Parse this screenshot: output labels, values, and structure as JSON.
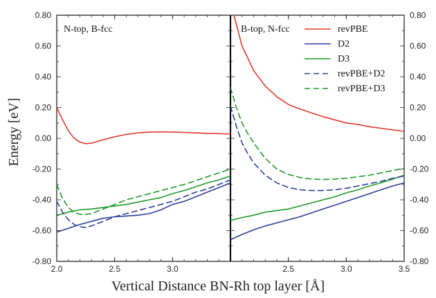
{
  "chart_data": {
    "type": "line",
    "ylabel": "Energy [eV]",
    "xlabel": "Vertical Distance BN-Rh top layer [Å]",
    "ylim": [
      -0.8,
      0.8
    ],
    "yticks": [
      "0.80",
      "0.60",
      "0.40",
      "0.20",
      "0.00",
      "-0.20",
      "-0.40",
      "-0.60",
      "-0.80"
    ],
    "yticks_right": [
      "0.80",
      "0.60",
      "0.40",
      "0.20",
      "0.00",
      "-0.20",
      "-0.40",
      "-0.60",
      "-0.80"
    ],
    "legend": {
      "placement": "top-right of right panel",
      "entries": [
        {
          "name": "revPBE",
          "color": "#e03a2f",
          "dash": "solid"
        },
        {
          "name": "D2",
          "color": "#2a3f99",
          "dash": "solid"
        },
        {
          "name": "D3",
          "color": "#1f9a2a",
          "dash": "solid"
        },
        {
          "name": "revPBE+D2",
          "color": "#2a3f99",
          "dash": "dashed"
        },
        {
          "name": "revPBE+D3",
          "color": "#1f9a2a",
          "dash": "dashed"
        }
      ]
    },
    "panels": [
      {
        "label": "N-top, B-fcc",
        "xlim": [
          2.0,
          3.5
        ],
        "xticks": [
          "2.0",
          "2.5",
          "3.0"
        ],
        "series": [
          {
            "name": "revPBE",
            "color": "#e03a2f",
            "dash": "solid",
            "x": [
              2.0,
              2.05,
              2.1,
              2.15,
              2.2,
              2.25,
              2.3,
              2.4,
              2.5,
              2.6,
              2.7,
              2.8,
              2.9,
              3.0,
              3.1,
              3.2,
              3.3,
              3.4,
              3.5
            ],
            "y": [
              0.2,
              0.12,
              0.05,
              0.0,
              -0.025,
              -0.035,
              -0.032,
              -0.01,
              0.01,
              0.025,
              0.035,
              0.04,
              0.042,
              0.04,
              0.038,
              0.035,
              0.032,
              0.03,
              0.028
            ]
          },
          {
            "name": "D2",
            "color": "#2a3f99",
            "dash": "solid",
            "x": [
              2.0,
              2.1,
              2.2,
              2.3,
              2.4,
              2.5,
              2.6,
              2.7,
              2.8,
              2.9,
              3.0,
              3.1,
              3.2,
              3.3,
              3.4,
              3.5
            ],
            "y": [
              -0.61,
              -0.585,
              -0.56,
              -0.54,
              -0.52,
              -0.51,
              -0.505,
              -0.5,
              -0.49,
              -0.465,
              -0.43,
              -0.41,
              -0.38,
              -0.35,
              -0.32,
              -0.29
            ]
          },
          {
            "name": "D3",
            "color": "#1f9a2a",
            "dash": "solid",
            "x": [
              2.0,
              2.1,
              2.2,
              2.3,
              2.4,
              2.5,
              2.6,
              2.7,
              2.8,
              2.9,
              3.0,
              3.1,
              3.2,
              3.3,
              3.4,
              3.5
            ],
            "y": [
              -0.5,
              -0.48,
              -0.465,
              -0.46,
              -0.45,
              -0.44,
              -0.43,
              -0.415,
              -0.4,
              -0.385,
              -0.36,
              -0.34,
              -0.315,
              -0.29,
              -0.27,
              -0.245
            ]
          },
          {
            "name": "revPBE+D2",
            "color": "#2a3f99",
            "dash": "dashed",
            "x": [
              2.0,
              2.05,
              2.1,
              2.15,
              2.2,
              2.25,
              2.3,
              2.4,
              2.5,
              2.6,
              2.7,
              2.8,
              2.9,
              3.0,
              3.1,
              3.2,
              3.3,
              3.4,
              3.5
            ],
            "y": [
              -0.41,
              -0.48,
              -0.53,
              -0.56,
              -0.575,
              -0.58,
              -0.57,
              -0.54,
              -0.51,
              -0.49,
              -0.47,
              -0.45,
              -0.43,
              -0.41,
              -0.38,
              -0.35,
              -0.33,
              -0.3,
              -0.27
            ]
          },
          {
            "name": "revPBE+D3",
            "color": "#1f9a2a",
            "dash": "dashed",
            "x": [
              2.0,
              2.05,
              2.1,
              2.15,
              2.2,
              2.25,
              2.3,
              2.4,
              2.5,
              2.6,
              2.7,
              2.8,
              2.9,
              3.0,
              3.1,
              3.2,
              3.3,
              3.4,
              3.5
            ],
            "y": [
              -0.3,
              -0.39,
              -0.45,
              -0.48,
              -0.495,
              -0.495,
              -0.49,
              -0.46,
              -0.43,
              -0.4,
              -0.38,
              -0.36,
              -0.34,
              -0.32,
              -0.3,
              -0.275,
              -0.25,
              -0.225,
              -0.2
            ]
          }
        ]
      },
      {
        "label": "B-top, N-fcc",
        "xlim": [
          2.0,
          3.5
        ],
        "xticks": [
          "2.5",
          "3.0",
          "3.5"
        ],
        "series": [
          {
            "name": "revPBE",
            "color": "#e03a2f",
            "dash": "solid",
            "x": [
              2.03,
              2.1,
              2.2,
              2.3,
              2.4,
              2.5,
              2.6,
              2.7,
              2.8,
              2.9,
              3.0,
              3.1,
              3.2,
              3.3,
              3.4,
              3.5
            ],
            "y": [
              0.8,
              0.6,
              0.44,
              0.34,
              0.27,
              0.22,
              0.19,
              0.165,
              0.14,
              0.12,
              0.1,
              0.09,
              0.075,
              0.065,
              0.055,
              0.045
            ]
          },
          {
            "name": "D2",
            "color": "#2a3f99",
            "dash": "solid",
            "x": [
              2.0,
              2.1,
              2.2,
              2.3,
              2.4,
              2.5,
              2.6,
              2.7,
              2.8,
              2.9,
              3.0,
              3.1,
              3.2,
              3.3,
              3.4,
              3.5
            ],
            "y": [
              -0.66,
              -0.625,
              -0.595,
              -0.57,
              -0.55,
              -0.53,
              -0.51,
              -0.485,
              -0.46,
              -0.435,
              -0.41,
              -0.385,
              -0.36,
              -0.335,
              -0.31,
              -0.29
            ]
          },
          {
            "name": "D3",
            "color": "#1f9a2a",
            "dash": "solid",
            "x": [
              2.0,
              2.1,
              2.2,
              2.3,
              2.4,
              2.5,
              2.6,
              2.7,
              2.8,
              2.9,
              3.0,
              3.1,
              3.2,
              3.3,
              3.4,
              3.5
            ],
            "y": [
              -0.535,
              -0.515,
              -0.5,
              -0.48,
              -0.47,
              -0.46,
              -0.44,
              -0.42,
              -0.4,
              -0.38,
              -0.355,
              -0.335,
              -0.31,
              -0.29,
              -0.265,
              -0.24
            ]
          },
          {
            "name": "revPBE+D2",
            "color": "#2a3f99",
            "dash": "dashed",
            "x": [
              2.0,
              2.05,
              2.1,
              2.15,
              2.2,
              2.3,
              2.4,
              2.5,
              2.6,
              2.7,
              2.8,
              2.9,
              3.0,
              3.1,
              3.2,
              3.3,
              3.4,
              3.5
            ],
            "y": [
              0.21,
              0.08,
              -0.03,
              -0.1,
              -0.16,
              -0.24,
              -0.29,
              -0.32,
              -0.335,
              -0.34,
              -0.34,
              -0.335,
              -0.325,
              -0.31,
              -0.295,
              -0.28,
              -0.26,
              -0.245
            ]
          },
          {
            "name": "revPBE+D3",
            "color": "#1f9a2a",
            "dash": "dashed",
            "x": [
              2.0,
              2.05,
              2.1,
              2.15,
              2.2,
              2.3,
              2.4,
              2.5,
              2.6,
              2.7,
              2.8,
              2.9,
              3.0,
              3.1,
              3.2,
              3.3,
              3.4,
              3.5
            ],
            "y": [
              0.33,
              0.2,
              0.1,
              0.03,
              -0.03,
              -0.13,
              -0.2,
              -0.235,
              -0.255,
              -0.265,
              -0.268,
              -0.265,
              -0.26,
              -0.25,
              -0.24,
              -0.225,
              -0.21,
              -0.195
            ]
          }
        ]
      }
    ]
  }
}
